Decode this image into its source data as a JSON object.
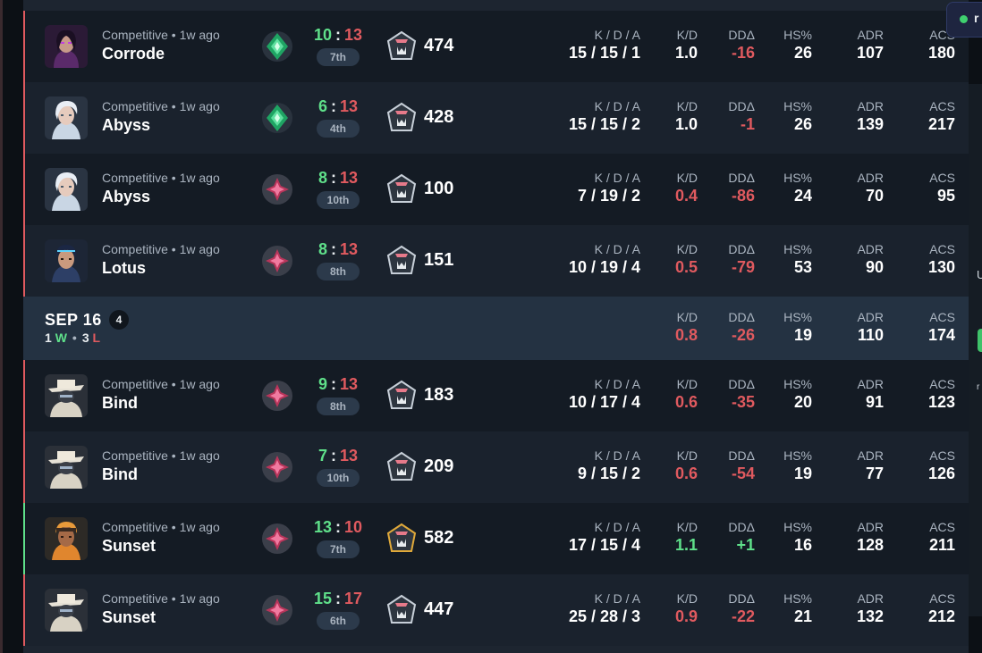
{
  "colors": {
    "win": "#5fe08a",
    "loss": "#e05a5f",
    "label": "#aab4c0"
  },
  "labels": {
    "kda": "K / D / A",
    "kd": "K/D",
    "dd": "DDΔ",
    "hs": "HS%",
    "adr": "ADR",
    "acs": "ACS"
  },
  "overlay": {
    "status_text": "r",
    "side_text_1": "U",
    "side_text_2": "r"
  },
  "rows_top": [
    {
      "meta": "Competitive • 1w ago",
      "map": "Corrode",
      "agent_icon": "reyna-avatar",
      "rank_icon": "ascendant-icon",
      "result": "loss",
      "score_a": "10",
      "score_sep": ":",
      "score_b": "13",
      "place": "7th",
      "rr_icon": "rank-tier-icon",
      "rr": "474",
      "kda": "15 / 15 / 1",
      "kd": "1.0",
      "kd_color": "white",
      "dd": "-16",
      "dd_color": "red",
      "hs": "26",
      "adr": "107",
      "acs": "180"
    },
    {
      "meta": "Competitive • 1w ago",
      "map": "Abyss",
      "agent_icon": "jett-avatar",
      "rank_icon": "ascendant-icon",
      "result": "loss",
      "score_a": "6",
      "score_sep": ":",
      "score_b": "13",
      "place": "4th",
      "rr_icon": "rank-tier-icon",
      "rr": "428",
      "kda": "15 / 15 / 2",
      "kd": "1.0",
      "kd_color": "white",
      "dd": "-1",
      "dd_color": "red",
      "hs": "26",
      "adr": "139",
      "acs": "217"
    },
    {
      "meta": "Competitive • 1w ago",
      "map": "Abyss",
      "agent_icon": "jett-avatar",
      "rank_icon": "immortal-icon",
      "result": "loss",
      "score_a": "8",
      "score_sep": ":",
      "score_b": "13",
      "place": "10th",
      "rr_icon": "rank-tier-icon",
      "rr": "100",
      "kda": "7 / 19 / 2",
      "kd": "0.4",
      "kd_color": "red",
      "dd": "-86",
      "dd_color": "red",
      "hs": "24",
      "adr": "70",
      "acs": "95"
    },
    {
      "meta": "Competitive • 1w ago",
      "map": "Lotus",
      "agent_icon": "neon-avatar",
      "rank_icon": "immortal-icon",
      "result": "loss",
      "score_a": "8",
      "score_sep": ":",
      "score_b": "13",
      "place": "8th",
      "rr_icon": "rank-tier-icon",
      "rr": "151",
      "kda": "10 / 19 / 4",
      "kd": "0.5",
      "kd_color": "red",
      "dd": "-79",
      "dd_color": "red",
      "hs": "53",
      "adr": "90",
      "acs": "130"
    }
  ],
  "day": {
    "date": "SEP 16",
    "count": "4",
    "wins": "1",
    "w": "W",
    "losses": "3",
    "l": "L",
    "dot": "•",
    "kd": "0.8",
    "dd": "-26",
    "hs": "19",
    "adr": "110",
    "acs": "174"
  },
  "rows_bottom": [
    {
      "meta": "Competitive • 1w ago",
      "map": "Bind",
      "agent_icon": "cypher-avatar",
      "rank_icon": "immortal-icon",
      "result": "loss",
      "score_a": "9",
      "score_sep": ":",
      "score_b": "13",
      "place": "8th",
      "rr_icon": "rank-tier-icon",
      "rr": "183",
      "kda": "10 / 17 / 4",
      "kd": "0.6",
      "kd_color": "red",
      "dd": "-35",
      "dd_color": "red",
      "hs": "20",
      "adr": "91",
      "acs": "123"
    },
    {
      "meta": "Competitive • 1w ago",
      "map": "Bind",
      "agent_icon": "cypher-avatar",
      "rank_icon": "immortal-icon",
      "result": "loss",
      "score_a": "7",
      "score_sep": ":",
      "score_b": "13",
      "place": "10th",
      "rr_icon": "rank-tier-icon",
      "rr": "209",
      "kda": "9 / 15 / 2",
      "kd": "0.6",
      "kd_color": "red",
      "dd": "-54",
      "dd_color": "red",
      "hs": "19",
      "adr": "77",
      "acs": "126"
    },
    {
      "meta": "Competitive • 1w ago",
      "map": "Sunset",
      "agent_icon": "raze-avatar",
      "rank_icon": "immortal-icon",
      "result": "win",
      "score_a": "13",
      "score_sep": ":",
      "score_b": "10",
      "place": "7th",
      "rr_icon": "rank-tier-icon-gold",
      "rr": "582",
      "kda": "17 / 15 / 4",
      "kd": "1.1",
      "kd_color": "green",
      "dd": "+1",
      "dd_color": "green",
      "hs": "16",
      "adr": "128",
      "acs": "211"
    },
    {
      "meta": "Competitive • 1w ago",
      "map": "Sunset",
      "agent_icon": "cypher-avatar",
      "rank_icon": "immortal-icon",
      "result": "loss",
      "score_a": "15",
      "score_sep": ":",
      "score_b": "17",
      "place": "6th",
      "rr_icon": "rank-tier-icon",
      "rr": "447",
      "kda": "25 / 28 / 3",
      "kd": "0.9",
      "kd_color": "red",
      "dd": "-22",
      "dd_color": "red",
      "hs": "21",
      "adr": "132",
      "acs": "212"
    }
  ]
}
